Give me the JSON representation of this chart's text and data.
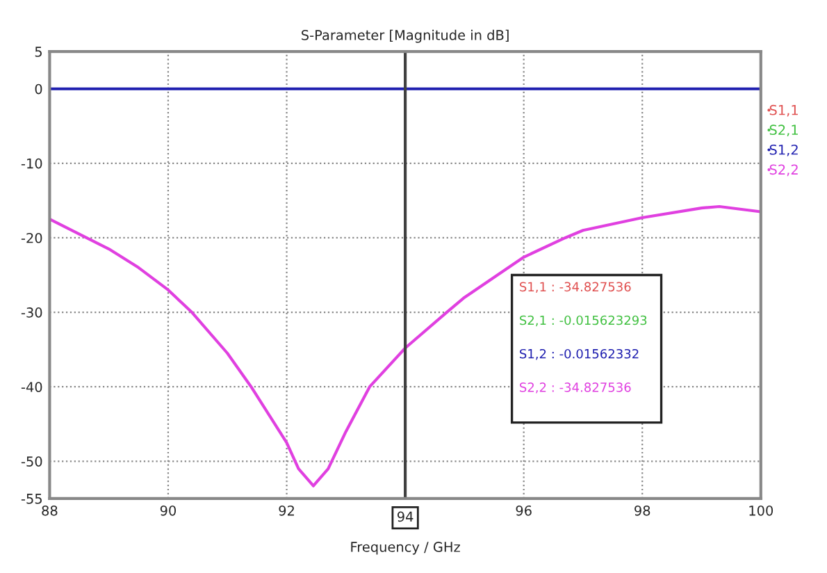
{
  "chart_data": {
    "type": "line",
    "title": "S-Parameter [Magnitude in dB]",
    "xlabel": "Frequency / GHz",
    "xlim": [
      88,
      100
    ],
    "xticks": [
      88,
      90,
      92,
      96,
      98,
      100
    ],
    "ylim": [
      -55,
      5
    ],
    "yticks": [
      5,
      0,
      -10,
      -20,
      -30,
      -40,
      -50,
      -55
    ],
    "grid": true,
    "legend": "right",
    "line_style": "solid",
    "marker": "none",
    "series": [
      {
        "name": "S1,1",
        "color": "#e05050"
      },
      {
        "name": "S2,1",
        "color": "#40c040"
      },
      {
        "name": "S1,2",
        "color": "#2020b0",
        "x": [
          88,
          100
        ],
        "values": [
          0,
          0
        ]
      },
      {
        "name": "S2,2",
        "color": "#e040e0",
        "x": [
          88,
          88.5,
          89,
          89.5,
          90,
          90.4,
          91,
          91.4,
          92,
          92.2,
          92.45,
          92.7,
          93,
          93.4,
          94,
          94.7,
          95,
          96,
          96.7,
          97,
          98,
          99,
          99.3,
          100
        ],
        "values": [
          -17.5,
          -19.5,
          -21.5,
          -24,
          -27,
          -30,
          -35.5,
          -40,
          -47.5,
          -51,
          -53.3,
          -51,
          -46,
          -40,
          -34.8,
          -30,
          -28,
          -22.6,
          -20,
          -19,
          -17.3,
          -16,
          -15.8,
          -16.5
        ]
      }
    ],
    "ref_lines": [
      {
        "axis": "x",
        "value": 94,
        "label": "94",
        "color": "#404040"
      }
    ],
    "annotations": [
      "S1,1 : -34.827536",
      "S2,1 : -0.015623293",
      "S1,2 : -0.01562332",
      "S2,2 : -34.827536"
    ]
  }
}
